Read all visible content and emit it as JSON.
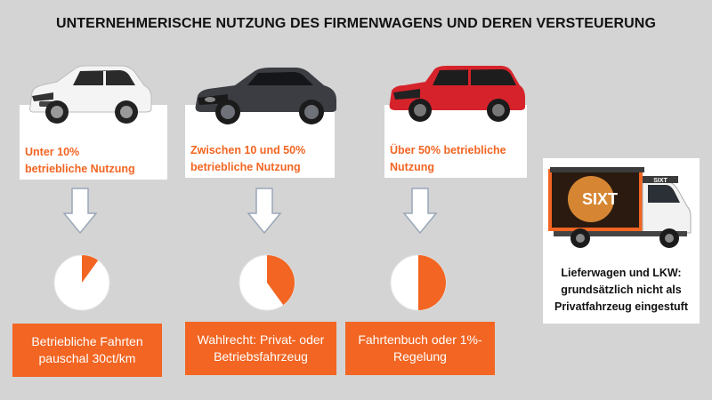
{
  "title": "UNTERNEHMERISCHE NUTZUNG DES FIRMENWAGENS UND DEREN VERSTEUERUNG",
  "colors": {
    "accent": "#f26522",
    "background": "#d4d4d4",
    "card": "#ffffff"
  },
  "columns": [
    {
      "car_icon": "white-suv-icon",
      "card_line1": "Unter 10%",
      "card_line2": "betriebliche Nutzung",
      "pie_fraction": 0.1,
      "result_line1": "Betriebliche Fahrten",
      "result_line2": "pauschal 30ct/km"
    },
    {
      "car_icon": "dark-sedan-icon",
      "card_line1": "Zwischen 10 und 50%",
      "card_line2": "betriebliche Nutzung",
      "pie_fraction": 0.4,
      "result_line1": "Wahlrecht: Privat- oder",
      "result_line2": "Betriebsfahrzeug"
    },
    {
      "car_icon": "red-wagon-icon",
      "card_line1": "Über 50% betriebliche",
      "card_line2": "Nutzung",
      "pie_fraction": 0.5,
      "result_line1": "Fahrtenbuch oder 1%-",
      "result_line2": "Regelung"
    }
  ],
  "truck": {
    "icon": "box-truck-icon",
    "logo": "SIXT",
    "line1": "Lieferwagen und LKW:",
    "line2": "grundsätzlich nicht als",
    "line3": "Privatfahrzeug eingestuft"
  }
}
